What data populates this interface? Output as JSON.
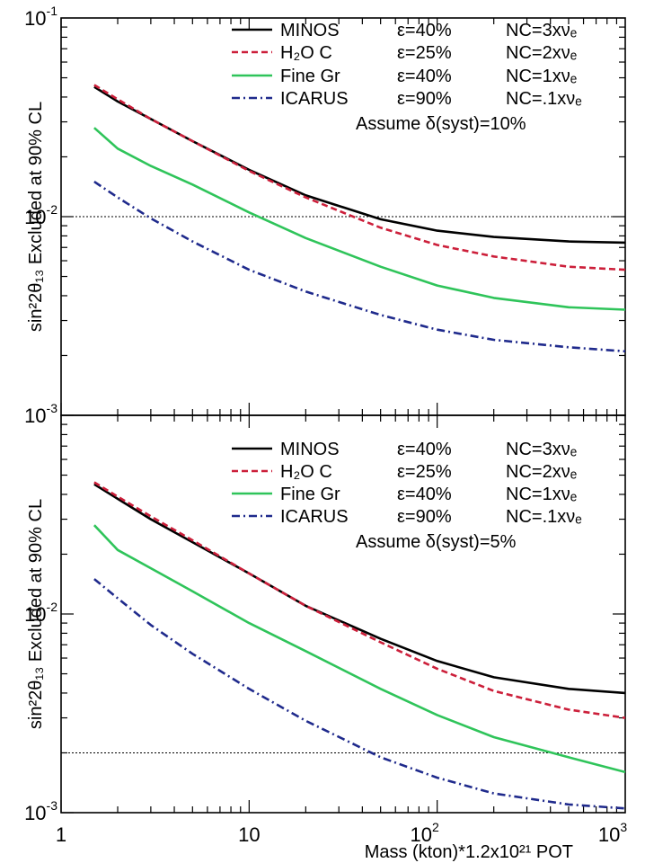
{
  "chart_data": [
    {
      "type": "line",
      "panel": "top",
      "x_scale": "log",
      "y_scale": "log",
      "xlim": [
        1,
        1000
      ],
      "ylim": [
        0.001,
        0.1
      ],
      "ylabel_html": "sin²2θ₁₃ Excluded at 90% CL",
      "y_tick_labels": [
        {
          "value": 0.1,
          "base": "10",
          "exp": "-1"
        },
        {
          "value": 0.01,
          "base": "10",
          "exp": "-2"
        },
        {
          "value": 0.001,
          "base": "10",
          "exp": "-3"
        }
      ],
      "reference_line": 0.01,
      "note": "Assume δ(syst)=10%",
      "series": [
        {
          "name": "MINOS",
          "eff": "ε=40%",
          "nc": "NC=3xνₑ",
          "color": "#000000",
          "dash": "",
          "x": [
            1.5,
            2,
            3,
            5,
            10,
            20,
            50,
            100,
            200,
            500,
            1000
          ],
          "y": [
            0.045,
            0.038,
            0.031,
            0.024,
            0.0172,
            0.0128,
            0.0097,
            0.0085,
            0.0079,
            0.0075,
            0.0074
          ]
        },
        {
          "name": "H₂O C",
          "eff": "ε=25%",
          "nc": "NC=2xνₑ",
          "color": "#cc1f3a",
          "dash": "7,4",
          "x": [
            1.5,
            2,
            3,
            5,
            10,
            20,
            50,
            100,
            200,
            500,
            1000
          ],
          "y": [
            0.046,
            0.039,
            0.031,
            0.024,
            0.017,
            0.0125,
            0.0088,
            0.0072,
            0.0063,
            0.0056,
            0.0054
          ]
        },
        {
          "name": "Fine Gr",
          "eff": "ε=40%",
          "nc": "NC=1xνₑ",
          "color": "#2fc45a",
          "dash": "",
          "x": [
            1.5,
            2,
            3,
            5,
            10,
            20,
            50,
            100,
            200,
            500,
            1000
          ],
          "y": [
            0.028,
            0.022,
            0.018,
            0.0145,
            0.0105,
            0.0078,
            0.0056,
            0.0045,
            0.0039,
            0.0035,
            0.0034
          ]
        },
        {
          "name": "ICARUS",
          "eff": "ε=90%",
          "nc": "NC=.1xνₑ",
          "color": "#1f2a8c",
          "dash": "9,4,2,4",
          "x": [
            1.5,
            2,
            3,
            5,
            10,
            20,
            50,
            100,
            200,
            500,
            1000
          ],
          "y": [
            0.015,
            0.0125,
            0.0098,
            0.0075,
            0.0054,
            0.0042,
            0.0032,
            0.0027,
            0.0024,
            0.0022,
            0.0021
          ]
        }
      ]
    },
    {
      "type": "line",
      "panel": "bottom",
      "x_scale": "log",
      "y_scale": "log",
      "xlim": [
        1,
        1000
      ],
      "ylim": [
        0.001,
        0.1
      ],
      "ylabel_html": "sin²2θ₁₃ Excluded at 90% CL",
      "xlabel": "Mass (kton)*1.2x10²¹ POT",
      "x_tick_labels": [
        {
          "value": 1,
          "text": "1"
        },
        {
          "value": 10,
          "text": "10"
        },
        {
          "value": 100,
          "base": "10",
          "exp": "2"
        },
        {
          "value": 1000,
          "base": "10",
          "exp": "3"
        }
      ],
      "y_tick_labels": [
        {
          "value": 0.01,
          "base": "10",
          "exp": "-2"
        },
        {
          "value": 0.001,
          "base": "10",
          "exp": "-3"
        }
      ],
      "reference_line": 0.002,
      "note": "Assume δ(syst)=5%",
      "series": [
        {
          "name": "MINOS",
          "eff": "ε=40%",
          "nc": "NC=3xνₑ",
          "color": "#000000",
          "dash": "",
          "x": [
            1.5,
            2,
            3,
            5,
            10,
            20,
            50,
            100,
            200,
            500,
            1000
          ],
          "y": [
            0.045,
            0.038,
            0.03,
            0.023,
            0.016,
            0.011,
            0.0075,
            0.0058,
            0.0048,
            0.0042,
            0.004
          ]
        },
        {
          "name": "H₂O C",
          "eff": "ε=25%",
          "nc": "NC=2xνₑ",
          "color": "#cc1f3a",
          "dash": "7,4",
          "x": [
            1.5,
            2,
            3,
            5,
            10,
            20,
            50,
            100,
            200,
            500,
            1000
          ],
          "y": [
            0.046,
            0.039,
            0.031,
            0.0235,
            0.016,
            0.011,
            0.0072,
            0.0053,
            0.0041,
            0.0033,
            0.003
          ]
        },
        {
          "name": "Fine Gr",
          "eff": "ε=40%",
          "nc": "NC=1xνₑ",
          "color": "#2fc45a",
          "dash": "",
          "x": [
            1.5,
            2,
            3,
            5,
            10,
            20,
            50,
            100,
            200,
            500,
            1000
          ],
          "y": [
            0.028,
            0.021,
            0.017,
            0.013,
            0.009,
            0.0065,
            0.0042,
            0.0031,
            0.0024,
            0.0019,
            0.0016
          ]
        },
        {
          "name": "ICARUS",
          "eff": "ε=90%",
          "nc": "NC=.1xνₑ",
          "color": "#1f2a8c",
          "dash": "9,4,2,4",
          "x": [
            1.5,
            2,
            3,
            5,
            10,
            20,
            50,
            100,
            200,
            500,
            1000
          ],
          "y": [
            0.015,
            0.012,
            0.0088,
            0.0063,
            0.0042,
            0.0029,
            0.0019,
            0.0015,
            0.00125,
            0.0011,
            0.00105
          ]
        }
      ]
    }
  ]
}
